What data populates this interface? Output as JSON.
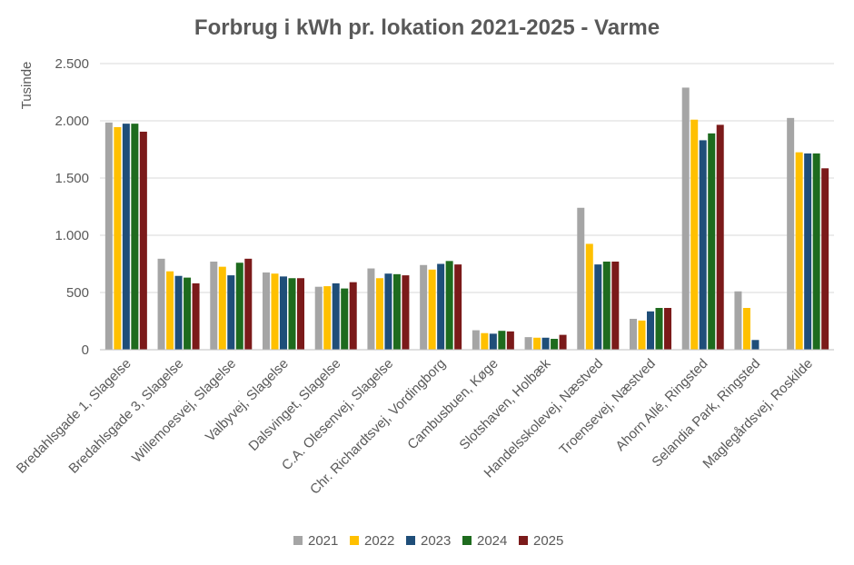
{
  "chart_data": {
    "type": "bar",
    "title": "Forbrug i kWh pr. lokation 2021-2025 - Varme",
    "ylabel": "Tusinde",
    "ylim": [
      0,
      2500
    ],
    "yticks": [
      0,
      500,
      1000,
      1500,
      2000,
      2500
    ],
    "ytick_labels": [
      "0",
      "500",
      "1.000",
      "1.500",
      "2.000",
      "2.500"
    ],
    "grid": true,
    "legend_position": "bottom",
    "categories": [
      "Bredahlsgade 1, Slagelse",
      "Bredahlsgade 3, Slagelse",
      "Willemoesvej, Slagelse",
      "Valbyvej, Slagelse",
      "Dalsvinget, Slagelse",
      "C.A. Olesenvej, Slagelse",
      "Chr. Richardtsvej, Vordingborg",
      "Cambusbuen, Køge",
      "Slotshaven, Holbæk",
      "Handelsskolevej, Næstved",
      "Troensevej, Næstved",
      "Ahorn Allé, Ringsted",
      "Selandia Park, Ringsted",
      "Maglegårdsvej, Roskilde"
    ],
    "series": [
      {
        "name": "2021",
        "color": "#a5a5a5",
        "values": [
          1985,
          795,
          770,
          675,
          550,
          710,
          740,
          170,
          110,
          1240,
          270,
          2290,
          510,
          2025
        ]
      },
      {
        "name": "2022",
        "color": "#ffc000",
        "values": [
          1945,
          685,
          725,
          665,
          555,
          625,
          700,
          145,
          105,
          925,
          255,
          2010,
          365,
          1725
        ]
      },
      {
        "name": "2023",
        "color": "#1f4e79",
        "values": [
          1975,
          645,
          650,
          640,
          580,
          665,
          750,
          140,
          105,
          745,
          335,
          1830,
          85,
          1715
        ]
      },
      {
        "name": "2024",
        "color": "#1e6b1e",
        "values": [
          1975,
          630,
          760,
          625,
          535,
          660,
          775,
          165,
          95,
          770,
          365,
          1890,
          0,
          1715
        ]
      },
      {
        "name": "2025",
        "color": "#7b1a1a",
        "values": [
          1905,
          580,
          795,
          625,
          590,
          650,
          745,
          160,
          130,
          770,
          365,
          1965,
          0,
          1585
        ]
      }
    ]
  }
}
